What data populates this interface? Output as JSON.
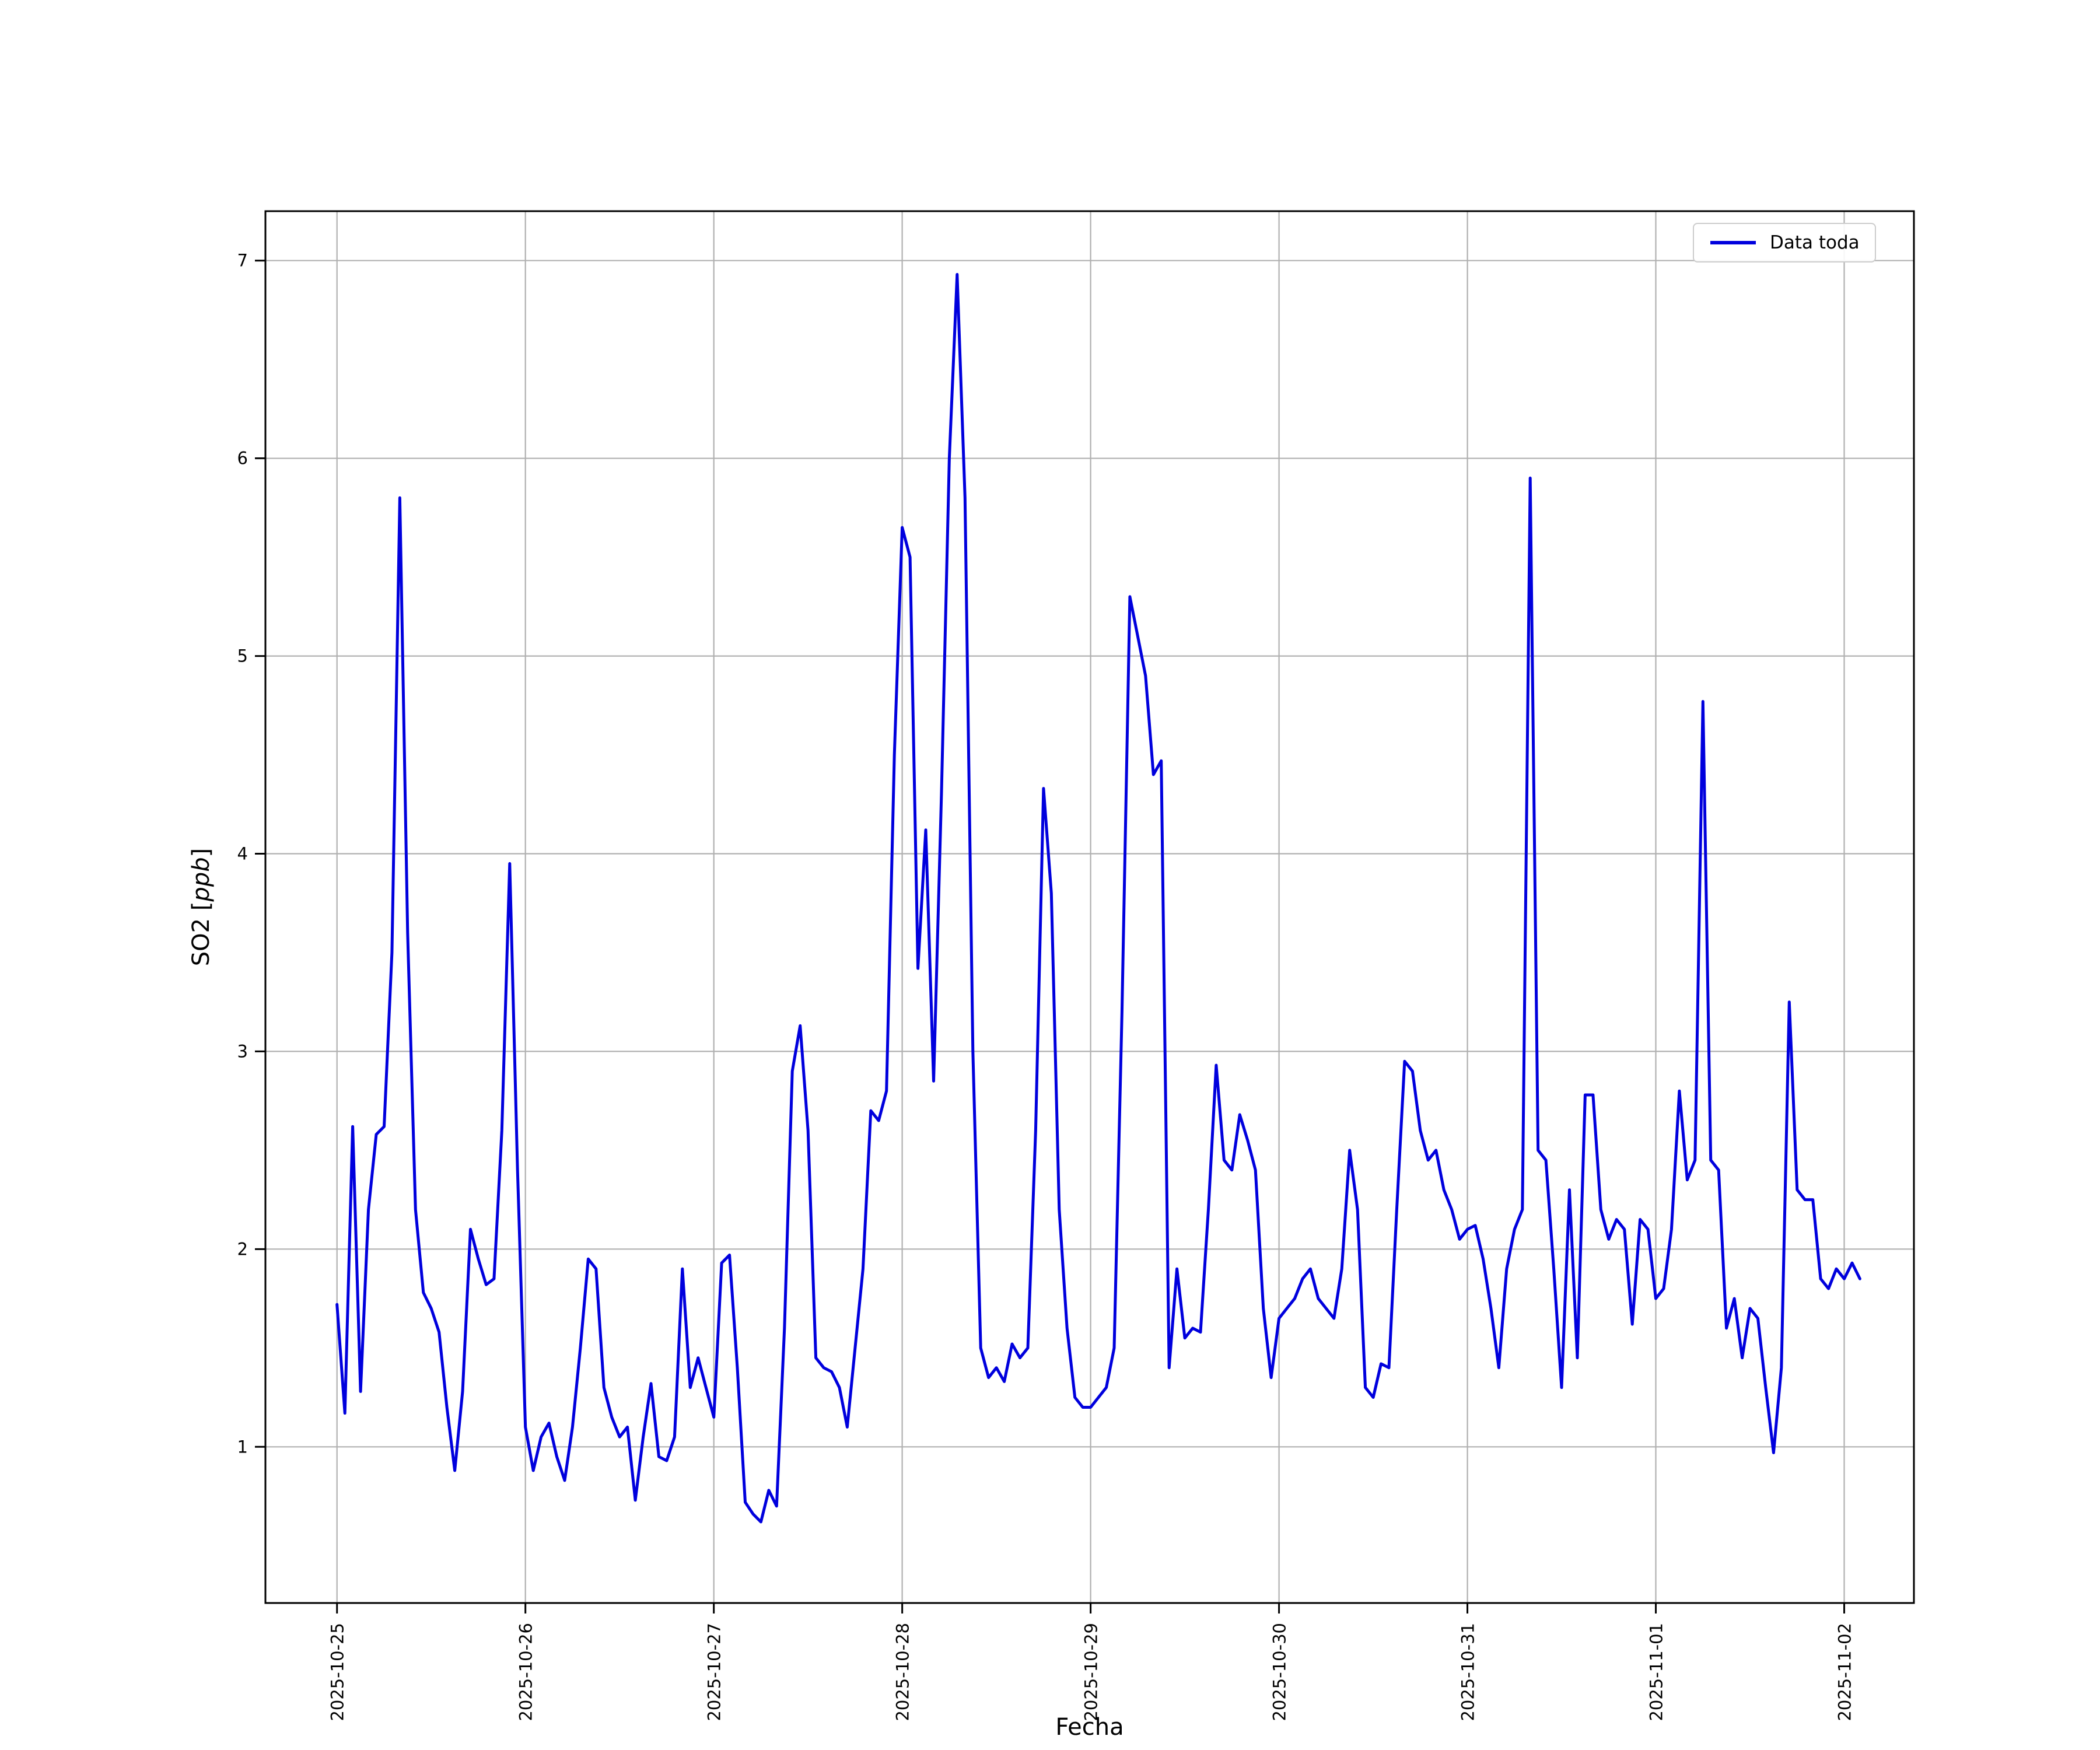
{
  "figure": {
    "xlabel": "Fecha",
    "ylabel": {
      "prefix": "SO2 [",
      "italic": "ppb",
      "suffix": "]"
    },
    "legend": {
      "label": "Data toda"
    }
  },
  "colors": {
    "line": "#0000DD",
    "grid": "#b0b0b0",
    "axis": "#000000",
    "legend_border": "#cccccc"
  },
  "chart_data": {
    "type": "line",
    "title": "",
    "xlabel": "Fecha",
    "ylabel": "SO2 [ppb]",
    "grid": true,
    "legend_position": "upper right",
    "x_tick_labels": [
      "2025-10-25",
      "2025-10-26",
      "2025-10-27",
      "2025-10-28",
      "2025-10-29",
      "2025-10-30",
      "2025-10-31",
      "2025-11-01",
      "2025-11-02"
    ],
    "y_ticks": [
      1,
      2,
      3,
      4,
      5,
      6,
      7
    ],
    "xlim_days": [
      -0.38,
      8.37
    ],
    "ylim": [
      0.21,
      7.25
    ],
    "x_unit": "hourly samples, days since 2025-10-25 00:00",
    "series": [
      {
        "name": "Data toda",
        "color": "#0000DD",
        "values": [
          1.72,
          1.17,
          2.62,
          1.28,
          2.2,
          2.58,
          2.62,
          3.5,
          5.8,
          3.6,
          2.2,
          1.78,
          1.7,
          1.58,
          1.2,
          0.88,
          1.28,
          2.1,
          1.95,
          1.82,
          1.85,
          2.6,
          3.95,
          2.4,
          1.1,
          0.88,
          1.05,
          1.12,
          0.95,
          0.83,
          1.1,
          1.5,
          1.95,
          1.9,
          1.3,
          1.15,
          1.05,
          1.1,
          0.73,
          1.05,
          1.32,
          0.95,
          0.93,
          1.05,
          1.9,
          1.3,
          1.45,
          1.3,
          1.15,
          1.93,
          1.97,
          1.4,
          0.72,
          0.66,
          0.62,
          0.78,
          0.7,
          1.6,
          2.9,
          3.13,
          2.6,
          1.45,
          1.4,
          1.38,
          1.3,
          1.1,
          1.5,
          1.9,
          2.7,
          2.65,
          2.8,
          4.5,
          5.65,
          5.5,
          3.42,
          4.12,
          2.85,
          4.3,
          6.0,
          6.93,
          5.8,
          3.0,
          1.5,
          1.35,
          1.4,
          1.33,
          1.52,
          1.45,
          1.5,
          2.6,
          4.33,
          3.8,
          2.2,
          1.6,
          1.25,
          1.2,
          1.2,
          1.25,
          1.3,
          1.5,
          3.2,
          5.3,
          5.1,
          4.9,
          4.4,
          4.47,
          1.4,
          1.9,
          1.55,
          1.6,
          1.58,
          2.2,
          2.93,
          2.45,
          2.4,
          2.68,
          2.55,
          2.4,
          1.7,
          1.35,
          1.65,
          1.7,
          1.75,
          1.85,
          1.9,
          1.75,
          1.7,
          1.65,
          1.9,
          2.5,
          2.2,
          1.3,
          1.25,
          1.42,
          1.4,
          2.2,
          2.95,
          2.9,
          2.6,
          2.45,
          2.5,
          2.3,
          2.2,
          2.05,
          2.1,
          2.12,
          1.95,
          1.7,
          1.4,
          1.9,
          2.1,
          2.2,
          5.9,
          2.5,
          2.45,
          1.9,
          1.3,
          2.3,
          1.45,
          2.78,
          2.78,
          2.2,
          2.05,
          2.15,
          2.1,
          1.62,
          2.15,
          2.1,
          1.75,
          1.8,
          2.1,
          2.8,
          2.35,
          2.45,
          4.77,
          2.45,
          2.4,
          1.6,
          1.75,
          1.45,
          1.7,
          1.65,
          1.3,
          0.97,
          1.4,
          3.25,
          2.3,
          2.25,
          2.25,
          1.85,
          1.8,
          1.9,
          1.85,
          1.93,
          1.85
        ]
      }
    ]
  }
}
